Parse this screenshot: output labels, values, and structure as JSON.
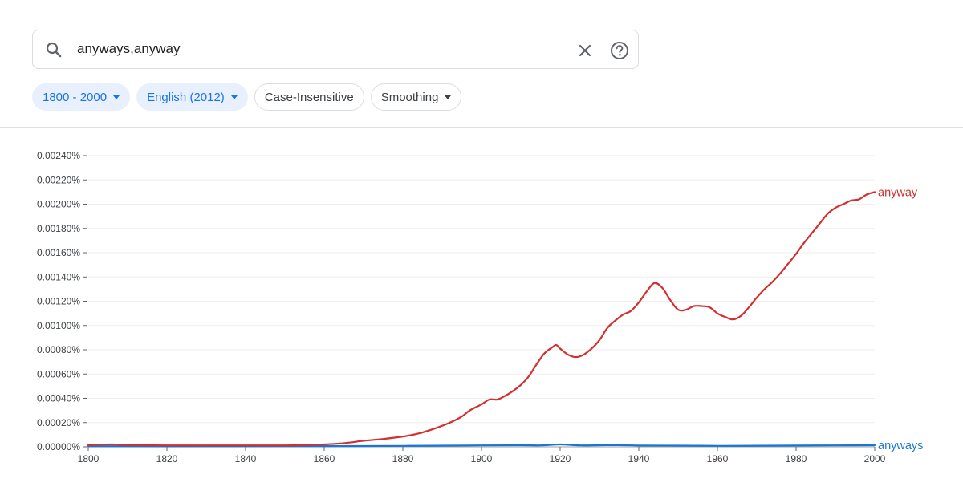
{
  "search": {
    "query": "anyways,anyway"
  },
  "filters": {
    "year_range": "1800 - 2000",
    "corpus": "English (2012)",
    "case": "Case-Insensitive",
    "smoothing": "Smoothing"
  },
  "colors": {
    "anyway": "#d32f2f",
    "anyways": "#1976d2",
    "grid": "#eeeeee",
    "chip_accent": "#1a73e8"
  },
  "icons": {
    "search": "search-icon",
    "clear": "close-icon",
    "help": "help-icon"
  },
  "chart_data": {
    "type": "line",
    "xlim": [
      1800,
      2000
    ],
    "ylim": [
      0,
      0.0024
    ],
    "grid": true,
    "legend": "inline-right",
    "x_ticks": [
      "1800",
      "1820",
      "1840",
      "1860",
      "1880",
      "1900",
      "1920",
      "1940",
      "1960",
      "1980",
      "2000"
    ],
    "y_ticks": [
      "0.00000%",
      "0.00020%",
      "0.00040%",
      "0.00060%",
      "0.00080%",
      "0.00100%",
      "0.00120%",
      "0.00140%",
      "0.00160%",
      "0.00180%",
      "0.00200%",
      "0.00220%",
      "0.00240%"
    ],
    "series": [
      {
        "name": "anyway",
        "color": "#d32f2f",
        "x": [
          1800,
          1806,
          1810,
          1820,
          1830,
          1840,
          1850,
          1855,
          1860,
          1865,
          1870,
          1875,
          1880,
          1884,
          1888,
          1892,
          1895,
          1897,
          1900,
          1902,
          1904,
          1906,
          1908,
          1910,
          1912,
          1914,
          1916,
          1918,
          1919,
          1920,
          1922,
          1924,
          1926,
          1928,
          1930,
          1932,
          1934,
          1936,
          1938,
          1940,
          1942,
          1944,
          1946,
          1948,
          1950,
          1952,
          1954,
          1956,
          1958,
          1960,
          1962,
          1964,
          1966,
          1968,
          1970,
          1972,
          1974,
          1976,
          1978,
          1980,
          1982,
          1984,
          1986,
          1988,
          1990,
          1992,
          1994,
          1996,
          1998,
          2000
        ],
        "values": [
          1.5e-05,
          2e-05,
          1.5e-05,
          1.2e-05,
          1.2e-05,
          1.2e-05,
          1.2e-05,
          1.5e-05,
          2e-05,
          3e-05,
          5e-05,
          6.5e-05,
          8.5e-05,
          0.00011,
          0.00015,
          0.0002,
          0.00025,
          0.0003,
          0.00035,
          0.00039,
          0.00039,
          0.00042,
          0.00046,
          0.00051,
          0.00058,
          0.00068,
          0.00077,
          0.00082,
          0.00084,
          0.00081,
          0.00076,
          0.00074,
          0.00076,
          0.00081,
          0.00088,
          0.00098,
          0.00104,
          0.00109,
          0.00112,
          0.00119,
          0.00128,
          0.00135,
          0.00131,
          0.00121,
          0.00113,
          0.00113,
          0.00116,
          0.00116,
          0.00115,
          0.0011,
          0.00107,
          0.00105,
          0.00108,
          0.00115,
          0.00123,
          0.0013,
          0.00136,
          0.00143,
          0.00151,
          0.00159,
          0.00168,
          0.00176,
          0.00184,
          0.00192,
          0.00197,
          0.002,
          0.00203,
          0.00204,
          0.00208,
          0.0021
        ]
      },
      {
        "name": "anyways",
        "color": "#1976d2",
        "x": [
          1800,
          1810,
          1820,
          1840,
          1860,
          1880,
          1900,
          1910,
          1915,
          1920,
          1925,
          1930,
          1935,
          1940,
          1950,
          1960,
          1970,
          1980,
          1990,
          2000
        ],
        "values": [
          5e-06,
          5e-06,
          4e-06,
          5e-06,
          6e-06,
          8e-06,
          1.2e-05,
          1.3e-05,
          1.2e-05,
          2e-05,
          1.2e-05,
          1.3e-05,
          1.4e-05,
          1.1e-05,
          1e-05,
          8e-06,
          9e-06,
          1.1e-05,
          1.2e-05,
          1.3e-05
        ]
      }
    ]
  }
}
